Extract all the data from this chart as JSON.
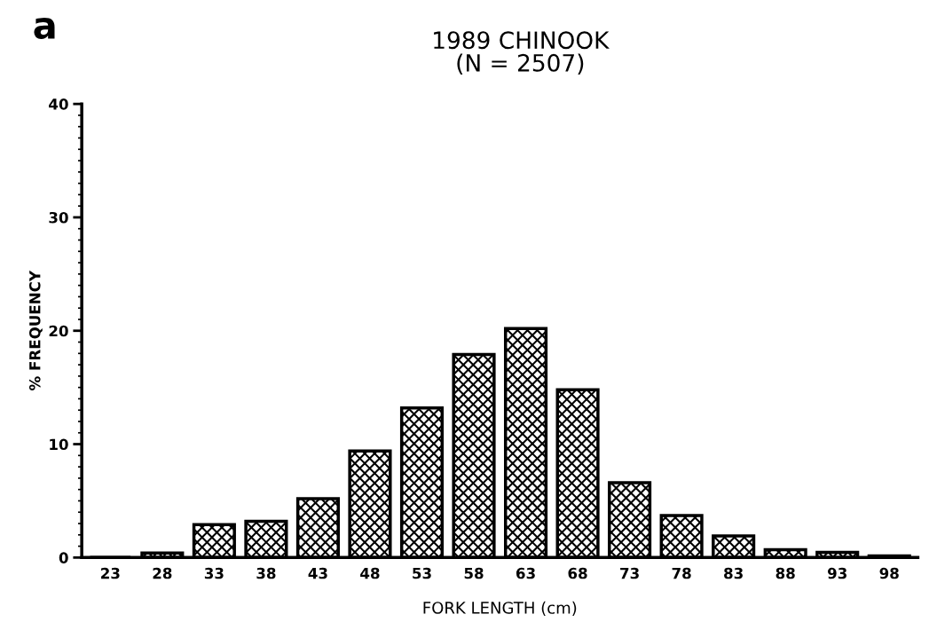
{
  "chart_data": {
    "type": "bar",
    "title": "1989 CHINOOK\n(N = 2507)",
    "xlabel": "FORK LENGTH (cm)",
    "ylabel": "% FREQUENCY",
    "annotations": [
      "a"
    ],
    "categories": [
      "23",
      "28",
      "33",
      "38",
      "43",
      "48",
      "53",
      "58",
      "63",
      "68",
      "73",
      "78",
      "83",
      "88",
      "93",
      "98"
    ],
    "values": [
      0,
      0.4,
      2.9,
      3.2,
      5.2,
      9.4,
      13.2,
      17.9,
      20.2,
      14.8,
      6.6,
      3.7,
      1.9,
      0.7,
      0.45,
      0.15
    ],
    "color": "#000000",
    "ylim": [
      0,
      40
    ],
    "yticks": [
      0,
      10,
      20,
      30,
      40
    ],
    "grid": false
  }
}
